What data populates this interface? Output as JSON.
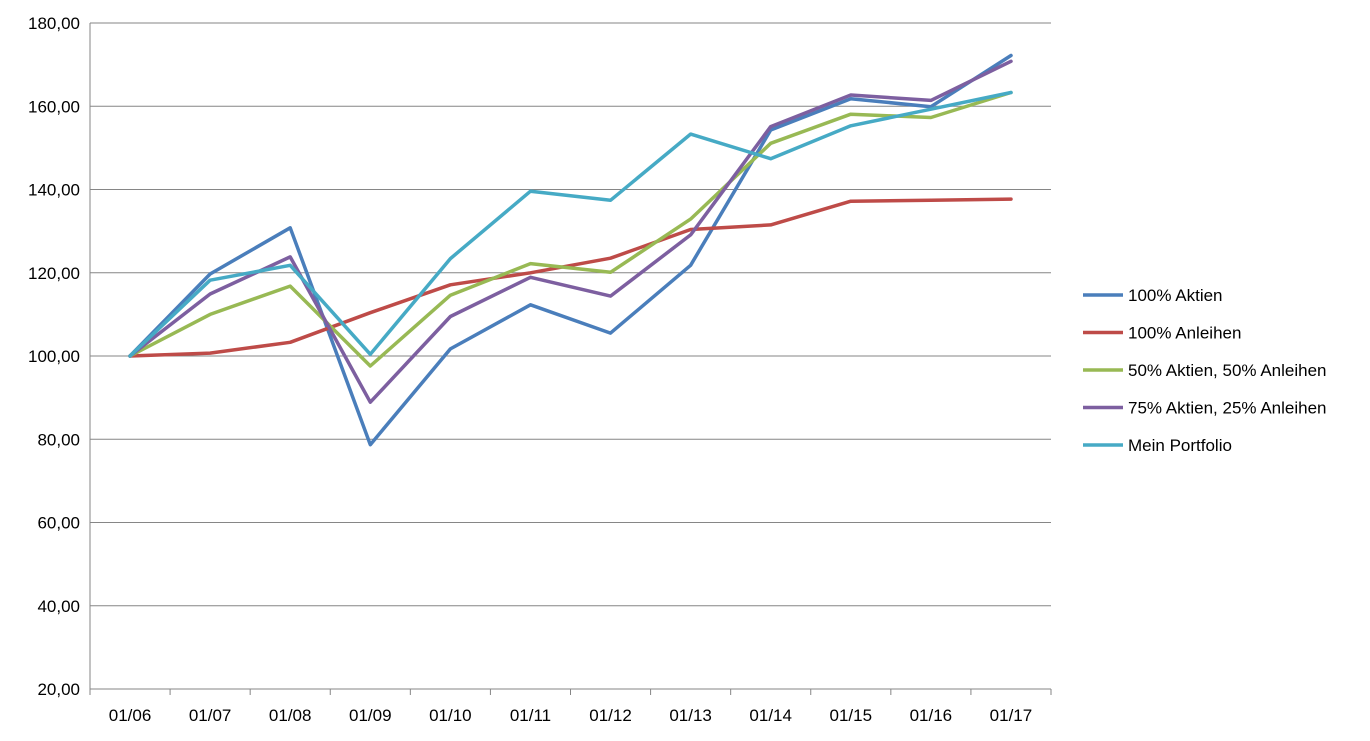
{
  "chart_data": {
    "type": "line",
    "title": "",
    "xlabel": "",
    "ylabel": "",
    "categories": [
      "01/06",
      "01/07",
      "01/08",
      "01/09",
      "01/10",
      "01/11",
      "01/12",
      "01/13",
      "01/14",
      "01/15",
      "01/16",
      "01/17"
    ],
    "ylim": [
      20,
      180
    ],
    "yticks": [
      20,
      40,
      60,
      80,
      100,
      120,
      140,
      160,
      180
    ],
    "ytick_labels": [
      "20,00",
      "40,00",
      "60,00",
      "80,00",
      "100,00",
      "120,00",
      "140,00",
      "160,00",
      "180,00"
    ],
    "grid": true,
    "legend_position": "right",
    "series": [
      {
        "name": "100% Aktien",
        "color": "#4a7ebb",
        "values": [
          100.0,
          119.7,
          130.8,
          78.7,
          101.7,
          112.3,
          105.5,
          121.8,
          154.3,
          161.8,
          159.9,
          172.2
        ]
      },
      {
        "name": "100% Anleihen",
        "color": "#be4b48",
        "values": [
          100.0,
          100.7,
          103.3,
          110.4,
          117.1,
          120.0,
          123.5,
          130.4,
          131.5,
          137.2,
          137.4,
          137.7
        ]
      },
      {
        "name": "50% Aktien, 50% Anleihen",
        "color": "#98b954",
        "values": [
          100.0,
          110.0,
          116.8,
          97.6,
          114.6,
          122.2,
          120.1,
          132.9,
          151.1,
          158.1,
          157.3,
          163.3
        ]
      },
      {
        "name": "75% Aktien, 25% Anleihen",
        "color": "#7d5fa0",
        "values": [
          100.0,
          114.9,
          123.8,
          88.9,
          109.5,
          118.9,
          114.4,
          129.1,
          155.1,
          162.7,
          161.4,
          170.8
        ]
      },
      {
        "name": "Mein Portfolio",
        "color": "#46aac5",
        "values": [
          100.0,
          118.2,
          121.8,
          100.4,
          123.4,
          139.6,
          137.4,
          153.3,
          147.4,
          155.3,
          159.3,
          163.3
        ]
      }
    ],
    "gridline_color": "#868686"
  }
}
